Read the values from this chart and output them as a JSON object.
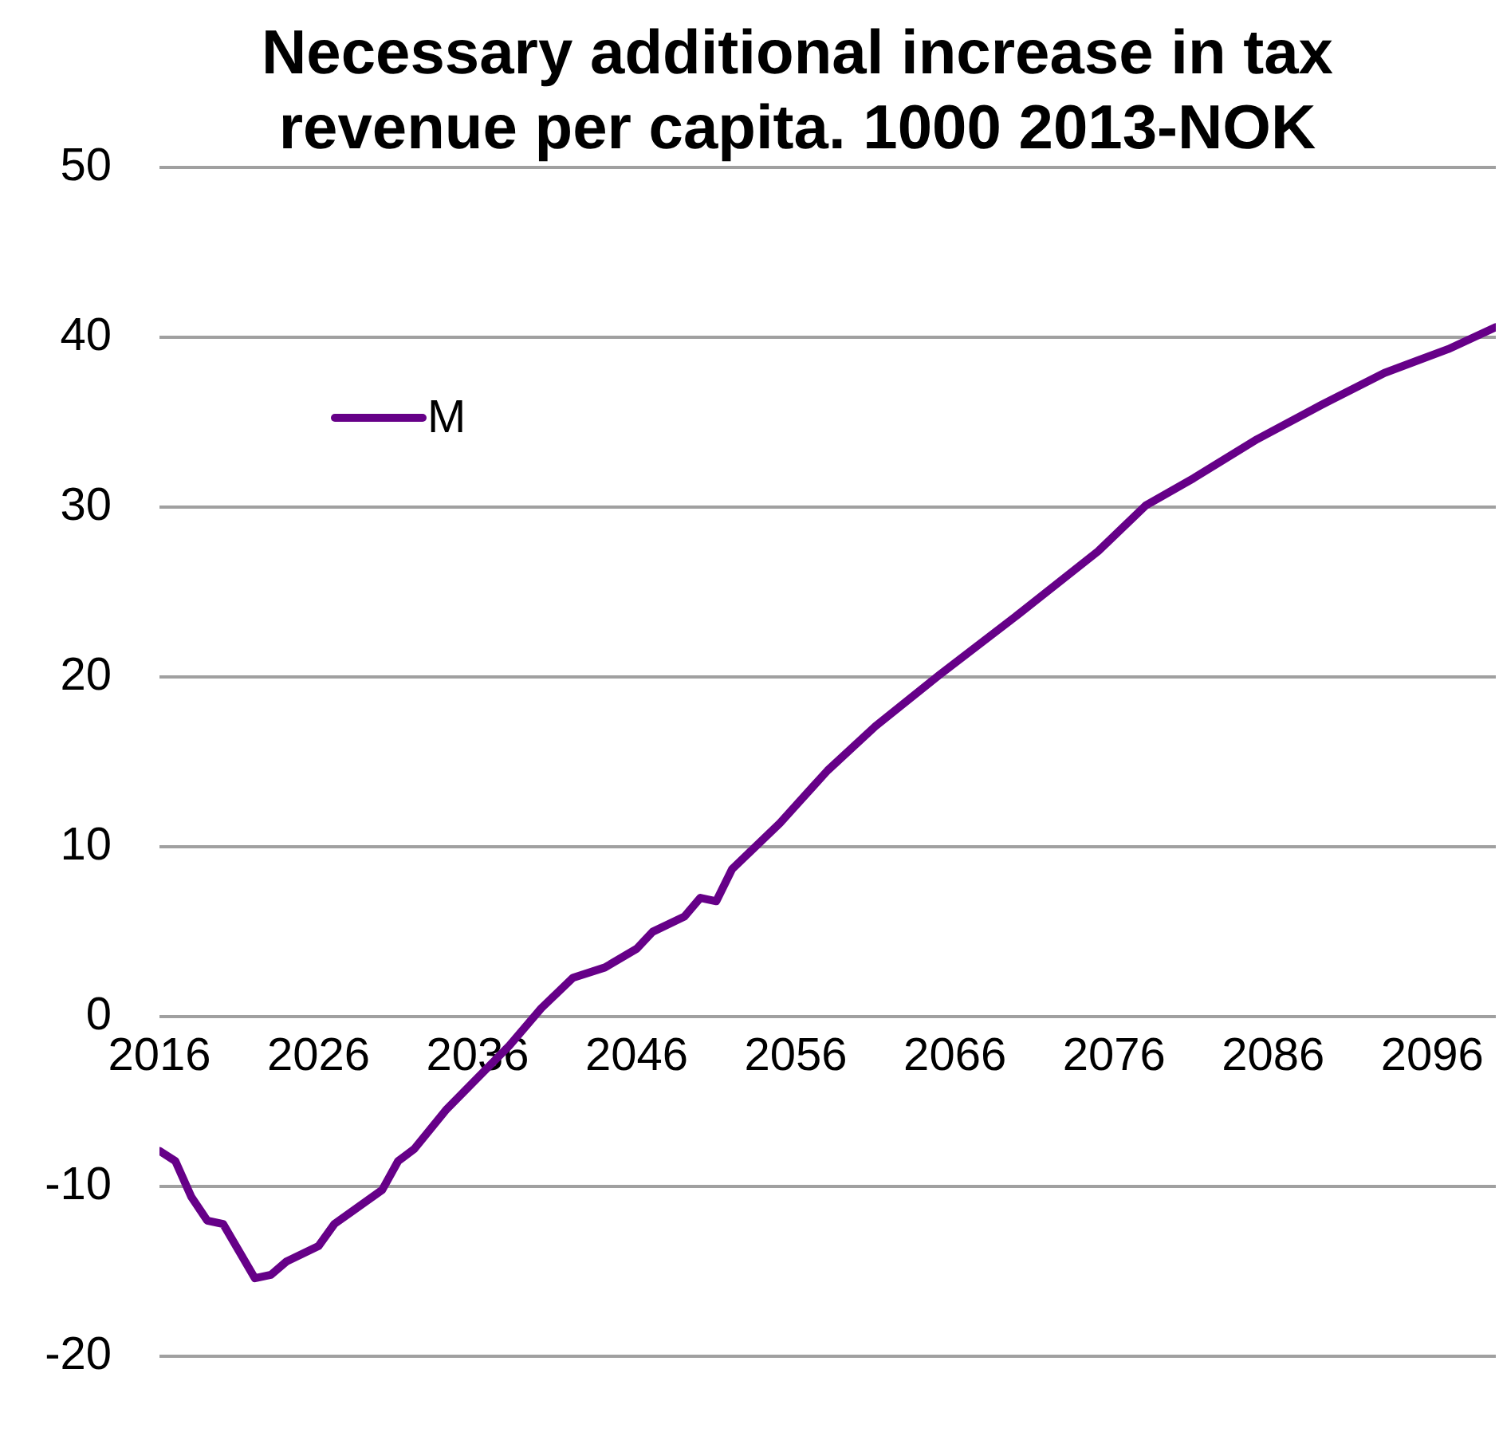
{
  "chart_data": {
    "type": "line",
    "title": "Necessary additional increase in tax revenue per capita. 1000 2013-NOK",
    "x": [
      2016,
      2017,
      2018,
      2019,
      2020,
      2022,
      2023,
      2024,
      2026,
      2027,
      2030,
      2031,
      2032,
      2034,
      2038,
      2040,
      2042,
      2044,
      2046,
      2047,
      2049,
      2050,
      2051,
      2052,
      2055,
      2058,
      2061,
      2065,
      2070,
      2075,
      2078,
      2081,
      2085,
      2089,
      2093,
      2097,
      2100
    ],
    "series": [
      {
        "name": "M",
        "color": "#660088",
        "values": [
          -7.9,
          -8.5,
          -10.6,
          -12.0,
          -12.2,
          -15.4,
          -15.2,
          -14.4,
          -13.5,
          -12.2,
          -10.2,
          -8.5,
          -7.8,
          -5.5,
          -1.7,
          0.5,
          2.3,
          2.9,
          4.0,
          5.0,
          5.9,
          7.0,
          6.8,
          8.7,
          11.4,
          14.5,
          17.1,
          20.1,
          23.7,
          27.4,
          30.1,
          31.7,
          34.0,
          36.0,
          37.9,
          39.3,
          40.6
        ]
      }
    ],
    "xlim": [
      2016,
      2100
    ],
    "xticks": [
      2016,
      2026,
      2036,
      2046,
      2056,
      2066,
      2076,
      2086,
      2096
    ],
    "ylim": [
      -20,
      50
    ],
    "yticks": [
      -20,
      -10,
      0,
      10,
      20,
      30,
      40,
      50
    ],
    "grid": "y",
    "legend": "top left",
    "line_style": "solid",
    "marker": "none"
  }
}
